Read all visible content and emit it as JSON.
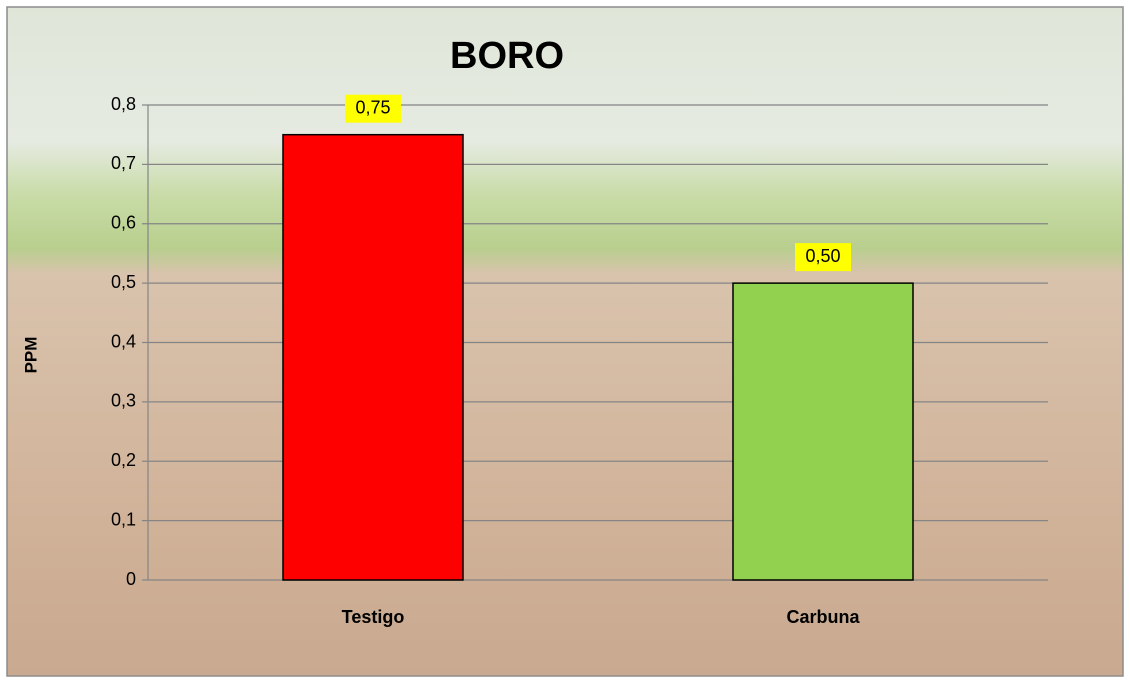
{
  "chart_data": {
    "type": "bar",
    "title": "BORO",
    "y_label": "PPM",
    "categories": [
      "Testigo",
      "Carbuna"
    ],
    "values": [
      0.75,
      0.5
    ],
    "value_labels": [
      "0,75",
      "0,50"
    ],
    "colors": [
      "#ff0000",
      "#92d050"
    ],
    "ylim": [
      0,
      0.8
    ],
    "yticks": [
      0,
      {
        "value": 0.1,
        "label": "0,1"
      },
      {
        "value": 0.2,
        "label": "0,2"
      },
      {
        "value": 0.3,
        "label": "0,3"
      },
      {
        "value": 0.4,
        "label": "0,4"
      },
      {
        "value": 0.5,
        "label": "0,5"
      },
      {
        "value": 0.6,
        "label": "0,6"
      },
      {
        "value": 0.7,
        "label": "0,7"
      },
      {
        "value": 0.8,
        "label": "0,8"
      }
    ],
    "grid": true
  }
}
